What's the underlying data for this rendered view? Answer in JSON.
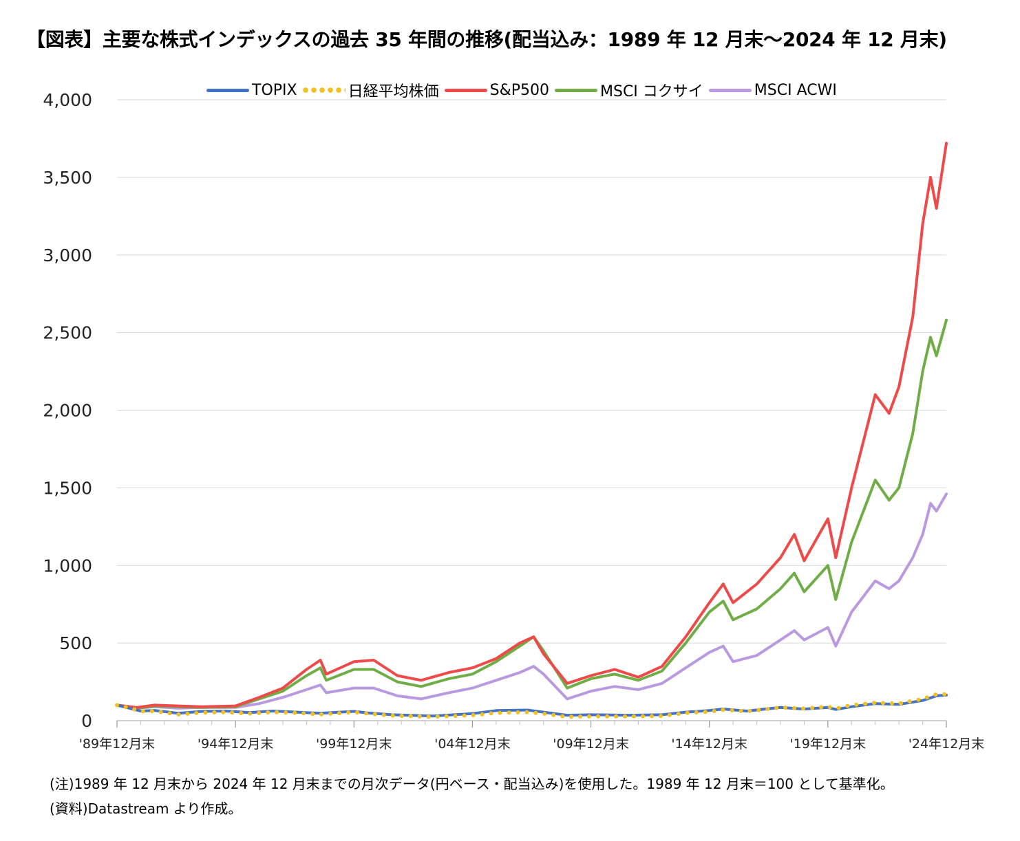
{
  "title": "【図表】主要な株式インデックスの過去 35 年間の推移(配当込み：1989 年 12 月末～2024 年 12 月末)",
  "notes": {
    "note": "(注)1989 年 12 月末から 2024 年 12 月末までの月次データ(円ベース・配当込み)を使用した。1989 年 12 月末＝100 として基準化。",
    "source": "(資料)Datastream より作成。"
  },
  "chart_data": {
    "type": "line",
    "title": "",
    "xlabel": "",
    "ylabel": "",
    "ylim": [
      0,
      4000
    ],
    "xlim": [
      1989.917,
      2024.917
    ],
    "grid": true,
    "legend_position": "top",
    "y_ticks": [
      0,
      500,
      1000,
      1500,
      2000,
      2500,
      3000,
      3500,
      4000
    ],
    "y_tick_labels": [
      "0",
      "500",
      "1,000",
      "1,500",
      "2,000",
      "2,500",
      "3,000",
      "3,500",
      "4,000"
    ],
    "x_ticks": [
      1989.917,
      1994.917,
      1999.917,
      2004.917,
      2009.917,
      2014.917,
      2019.917,
      2024.917
    ],
    "x_tick_labels": [
      "'89年12月末",
      "'94年12月末",
      "'99年12月末",
      "'04年12月末",
      "'09年12月末",
      "'14年12月末",
      "'19年12月末",
      "'24年12月末"
    ],
    "series": [
      {
        "name": "TOPIX",
        "color": "#4472C4",
        "style": "solid",
        "points": [
          [
            1989.917,
            100
          ],
          [
            1990.5,
            78
          ],
          [
            1990.917,
            62
          ],
          [
            1991.5,
            66
          ],
          [
            1992.5,
            48
          ],
          [
            1993.5,
            60
          ],
          [
            1994.5,
            62
          ],
          [
            1995.5,
            52
          ],
          [
            1996.5,
            62
          ],
          [
            1997.5,
            55
          ],
          [
            1998.5,
            48
          ],
          [
            1999.917,
            60
          ],
          [
            2000.5,
            50
          ],
          [
            2001.5,
            38
          ],
          [
            2003.25,
            30
          ],
          [
            2004.917,
            45
          ],
          [
            2005.917,
            65
          ],
          [
            2007.25,
            68
          ],
          [
            2007.917,
            55
          ],
          [
            2008.917,
            35
          ],
          [
            2009.917,
            38
          ],
          [
            2011.5,
            35
          ],
          [
            2012.917,
            38
          ],
          [
            2013.917,
            55
          ],
          [
            2014.917,
            65
          ],
          [
            2015.5,
            75
          ],
          [
            2016.5,
            62
          ],
          [
            2017.917,
            85
          ],
          [
            2018.917,
            75
          ],
          [
            2019.917,
            85
          ],
          [
            2020.25,
            72
          ],
          [
            2020.917,
            90
          ],
          [
            2021.917,
            110
          ],
          [
            2022.917,
            105
          ],
          [
            2023.917,
            130
          ],
          [
            2024.5,
            160
          ],
          [
            2024.917,
            165
          ]
        ]
      },
      {
        "name": "日経平均株価",
        "color": "#F4C01E",
        "style": "dotted",
        "points": [
          [
            1989.917,
            100
          ],
          [
            1990.5,
            80
          ],
          [
            1990.917,
            60
          ],
          [
            1991.5,
            62
          ],
          [
            1992.5,
            40
          ],
          [
            1993.5,
            52
          ],
          [
            1994.5,
            55
          ],
          [
            1995.5,
            45
          ],
          [
            1996.5,
            55
          ],
          [
            1997.5,
            50
          ],
          [
            1998.5,
            40
          ],
          [
            1999.917,
            55
          ],
          [
            2000.5,
            45
          ],
          [
            2001.5,
            33
          ],
          [
            2003.25,
            25
          ],
          [
            2004.917,
            35
          ],
          [
            2005.917,
            50
          ],
          [
            2007.25,
            55
          ],
          [
            2007.917,
            45
          ],
          [
            2008.917,
            25
          ],
          [
            2009.917,
            28
          ],
          [
            2011.5,
            28
          ],
          [
            2012.917,
            30
          ],
          [
            2013.917,
            50
          ],
          [
            2014.917,
            58
          ],
          [
            2015.5,
            70
          ],
          [
            2016.5,
            60
          ],
          [
            2017.917,
            85
          ],
          [
            2018.917,
            78
          ],
          [
            2019.917,
            90
          ],
          [
            2020.25,
            78
          ],
          [
            2020.917,
            100
          ],
          [
            2021.917,
            115
          ],
          [
            2022.917,
            110
          ],
          [
            2023.917,
            140
          ],
          [
            2024.5,
            170
          ],
          [
            2024.917,
            170
          ]
        ]
      },
      {
        "name": "S&P500",
        "color": "#EE4A4A",
        "style": "solid",
        "points": [
          [
            1989.917,
            100
          ],
          [
            1990.75,
            85
          ],
          [
            1991.5,
            100
          ],
          [
            1992.5,
            95
          ],
          [
            1993.5,
            90
          ],
          [
            1994.917,
            95
          ],
          [
            1995.917,
            150
          ],
          [
            1996.917,
            210
          ],
          [
            1997.917,
            330
          ],
          [
            1998.5,
            390
          ],
          [
            1998.75,
            300
          ],
          [
            1999.917,
            380
          ],
          [
            2000.75,
            390
          ],
          [
            2001.75,
            290
          ],
          [
            2002.75,
            260
          ],
          [
            2003.917,
            310
          ],
          [
            2004.917,
            340
          ],
          [
            2005.917,
            400
          ],
          [
            2006.917,
            500
          ],
          [
            2007.5,
            540
          ],
          [
            2007.917,
            430
          ],
          [
            2008.917,
            240
          ],
          [
            2009.917,
            290
          ],
          [
            2010.917,
            330
          ],
          [
            2011.917,
            280
          ],
          [
            2012.917,
            350
          ],
          [
            2013.917,
            540
          ],
          [
            2014.917,
            760
          ],
          [
            2015.5,
            880
          ],
          [
            2015.917,
            760
          ],
          [
            2016.917,
            880
          ],
          [
            2017.917,
            1050
          ],
          [
            2018.5,
            1200
          ],
          [
            2018.917,
            1030
          ],
          [
            2019.917,
            1300
          ],
          [
            2020.25,
            1050
          ],
          [
            2020.917,
            1500
          ],
          [
            2021.917,
            2100
          ],
          [
            2022.5,
            1980
          ],
          [
            2022.917,
            2150
          ],
          [
            2023.5,
            2600
          ],
          [
            2023.917,
            3200
          ],
          [
            2024.25,
            3500
          ],
          [
            2024.5,
            3300
          ],
          [
            2024.917,
            3720
          ]
        ]
      },
      {
        "name": "MSCI コクサイ",
        "color": "#70AD47",
        "style": "solid",
        "points": [
          [
            1989.917,
            100
          ],
          [
            1990.75,
            80
          ],
          [
            1991.5,
            95
          ],
          [
            1992.5,
            90
          ],
          [
            1993.5,
            85
          ],
          [
            1994.917,
            90
          ],
          [
            1995.917,
            140
          ],
          [
            1996.917,
            190
          ],
          [
            1997.917,
            290
          ],
          [
            1998.5,
            340
          ],
          [
            1998.75,
            260
          ],
          [
            1999.917,
            330
          ],
          [
            2000.75,
            330
          ],
          [
            2001.75,
            250
          ],
          [
            2002.75,
            220
          ],
          [
            2003.917,
            270
          ],
          [
            2004.917,
            300
          ],
          [
            2005.917,
            380
          ],
          [
            2006.917,
            480
          ],
          [
            2007.5,
            540
          ],
          [
            2007.917,
            450
          ],
          [
            2008.917,
            210
          ],
          [
            2009.917,
            270
          ],
          [
            2010.917,
            300
          ],
          [
            2011.917,
            260
          ],
          [
            2012.917,
            320
          ],
          [
            2013.917,
            500
          ],
          [
            2014.917,
            700
          ],
          [
            2015.5,
            770
          ],
          [
            2015.917,
            650
          ],
          [
            2016.917,
            720
          ],
          [
            2017.917,
            850
          ],
          [
            2018.5,
            950
          ],
          [
            2018.917,
            830
          ],
          [
            2019.917,
            1000
          ],
          [
            2020.25,
            780
          ],
          [
            2020.917,
            1150
          ],
          [
            2021.917,
            1550
          ],
          [
            2022.5,
            1420
          ],
          [
            2022.917,
            1500
          ],
          [
            2023.5,
            1850
          ],
          [
            2023.917,
            2250
          ],
          [
            2024.25,
            2470
          ],
          [
            2024.5,
            2350
          ],
          [
            2024.917,
            2580
          ]
        ]
      },
      {
        "name": "MSCI ACWI",
        "color": "#B99AE0",
        "style": "solid",
        "points": [
          [
            1989.917,
            100
          ],
          [
            1990.75,
            80
          ],
          [
            1991.5,
            90
          ],
          [
            1992.5,
            80
          ],
          [
            1993.5,
            85
          ],
          [
            1994.917,
            85
          ],
          [
            1995.917,
            110
          ],
          [
            1996.917,
            150
          ],
          [
            1997.917,
            200
          ],
          [
            1998.5,
            230
          ],
          [
            1998.75,
            180
          ],
          [
            1999.917,
            210
          ],
          [
            2000.75,
            210
          ],
          [
            2001.75,
            160
          ],
          [
            2002.75,
            140
          ],
          [
            2003.917,
            180
          ],
          [
            2004.917,
            210
          ],
          [
            2005.917,
            260
          ],
          [
            2006.917,
            310
          ],
          [
            2007.5,
            350
          ],
          [
            2007.917,
            300
          ],
          [
            2008.917,
            140
          ],
          [
            2009.917,
            190
          ],
          [
            2010.917,
            220
          ],
          [
            2011.917,
            200
          ],
          [
            2012.917,
            240
          ],
          [
            2013.917,
            340
          ],
          [
            2014.917,
            440
          ],
          [
            2015.5,
            480
          ],
          [
            2015.917,
            380
          ],
          [
            2016.917,
            420
          ],
          [
            2017.917,
            520
          ],
          [
            2018.5,
            580
          ],
          [
            2018.917,
            520
          ],
          [
            2019.917,
            600
          ],
          [
            2020.25,
            480
          ],
          [
            2020.917,
            700
          ],
          [
            2021.917,
            900
          ],
          [
            2022.5,
            850
          ],
          [
            2022.917,
            900
          ],
          [
            2023.5,
            1050
          ],
          [
            2023.917,
            1200
          ],
          [
            2024.25,
            1400
          ],
          [
            2024.5,
            1350
          ],
          [
            2024.917,
            1460
          ]
        ]
      }
    ]
  }
}
